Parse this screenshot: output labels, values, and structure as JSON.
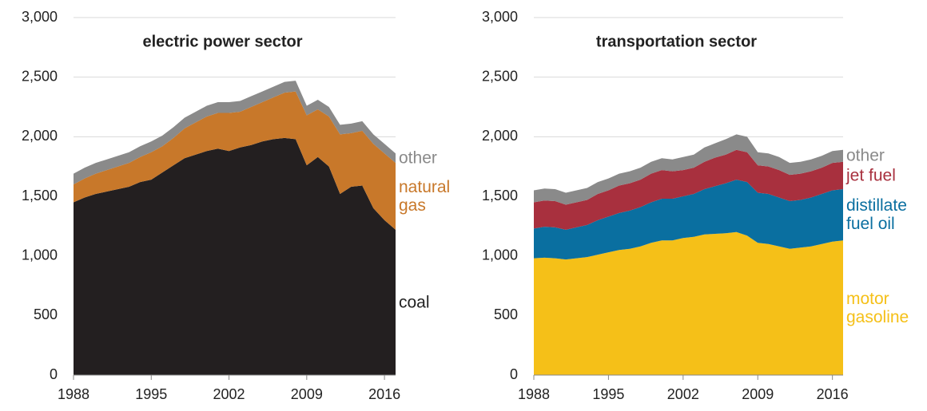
{
  "chart_data": [
    {
      "type": "area",
      "stacked": true,
      "title": "electric power sector",
      "x": [
        1988,
        1989,
        1990,
        1991,
        1992,
        1993,
        1994,
        1995,
        1996,
        1997,
        1998,
        1999,
        2000,
        2001,
        2002,
        2003,
        2004,
        2005,
        2006,
        2007,
        2008,
        2009,
        2010,
        2011,
        2012,
        2013,
        2014,
        2015,
        2016,
        2017
      ],
      "series": [
        {
          "name": "coal",
          "color": "#231f20",
          "values": [
            1450,
            1490,
            1520,
            1540,
            1560,
            1580,
            1620,
            1640,
            1700,
            1760,
            1820,
            1850,
            1880,
            1900,
            1880,
            1910,
            1930,
            1960,
            1980,
            1990,
            1980,
            1760,
            1830,
            1750,
            1520,
            1580,
            1590,
            1400,
            1300,
            1220
          ]
        },
        {
          "name": "natural gas",
          "color": "#c8782a",
          "values": [
            150,
            160,
            170,
            180,
            190,
            200,
            210,
            230,
            220,
            230,
            250,
            270,
            290,
            300,
            320,
            300,
            320,
            330,
            350,
            380,
            400,
            420,
            400,
            420,
            500,
            450,
            460,
            540,
            560,
            560
          ]
        },
        {
          "name": "other",
          "color": "#8a8a8a",
          "values": [
            90,
            90,
            90,
            90,
            90,
            90,
            90,
            90,
            90,
            90,
            90,
            90,
            90,
            90,
            90,
            90,
            90,
            90,
            90,
            90,
            90,
            80,
            80,
            80,
            80,
            80,
            80,
            80,
            80,
            80
          ]
        }
      ],
      "xlim": [
        1988,
        2017
      ],
      "xticks": [
        1988,
        1995,
        2002,
        2009,
        2016
      ],
      "ylim": [
        0,
        3000
      ],
      "yticks": [
        0,
        500,
        {
          "value": 1000,
          "label": "1,000"
        },
        {
          "value": 1500,
          "label": "1,500"
        },
        {
          "value": 2000,
          "label": "2,000"
        },
        {
          "value": 2500,
          "label": "2,500"
        },
        {
          "value": 3000,
          "label": "3,000"
        }
      ],
      "grid": true
    },
    {
      "type": "area",
      "stacked": true,
      "title": "transportation sector",
      "x": [
        1988,
        1989,
        1990,
        1991,
        1992,
        1993,
        1994,
        1995,
        1996,
        1997,
        1998,
        1999,
        2000,
        2001,
        2002,
        2003,
        2004,
        2005,
        2006,
        2007,
        2008,
        2009,
        2010,
        2011,
        2012,
        2013,
        2014,
        2015,
        2016,
        2017
      ],
      "series": [
        {
          "name": "motor gasoline",
          "color": "#f5c018",
          "values": [
            980,
            985,
            980,
            970,
            980,
            990,
            1010,
            1030,
            1050,
            1060,
            1080,
            1110,
            1130,
            1130,
            1150,
            1160,
            1180,
            1185,
            1190,
            1200,
            1170,
            1110,
            1100,
            1080,
            1060,
            1070,
            1080,
            1100,
            1120,
            1130
          ]
        },
        {
          "name": "distillate fuel oil",
          "color": "#0a6fa0",
          "values": [
            250,
            260,
            260,
            250,
            260,
            270,
            290,
            300,
            310,
            320,
            330,
            340,
            350,
            350,
            350,
            360,
            380,
            400,
            420,
            440,
            450,
            420,
            420,
            410,
            400,
            400,
            410,
            420,
            430,
            430
          ]
        },
        {
          "name": "jet fuel",
          "color": "#a8303e",
          "values": [
            220,
            220,
            220,
            210,
            210,
            210,
            220,
            220,
            230,
            230,
            230,
            240,
            240,
            230,
            220,
            220,
            230,
            240,
            240,
            250,
            250,
            230,
            230,
            230,
            220,
            220,
            220,
            220,
            230,
            230
          ]
        },
        {
          "name": "other",
          "color": "#8a8a8a",
          "values": [
            100,
            100,
            100,
            100,
            100,
            100,
            100,
            100,
            100,
            100,
            100,
            100,
            100,
            100,
            110,
            110,
            120,
            120,
            130,
            130,
            130,
            110,
            110,
            110,
            100,
            100,
            100,
            100,
            100,
            100
          ]
        }
      ],
      "xlim": [
        1988,
        2017
      ],
      "xticks": [
        1988,
        1995,
        2002,
        2009,
        2016
      ],
      "ylim": [
        0,
        3000
      ],
      "yticks": [
        0,
        500,
        {
          "value": 1000,
          "label": "1,000"
        },
        {
          "value": 1500,
          "label": "1,500"
        },
        {
          "value": 2000,
          "label": "2,000"
        },
        {
          "value": 2500,
          "label": "2,500"
        },
        {
          "value": 3000,
          "label": "3,000"
        }
      ],
      "grid": true
    }
  ]
}
